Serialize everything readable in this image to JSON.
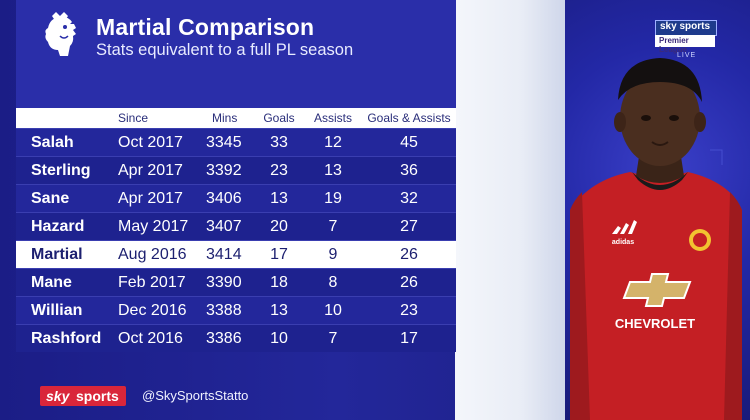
{
  "header": {
    "title": "Martial Comparison",
    "subtitle": "Stats equivalent to a full PL season"
  },
  "table": {
    "columns": [
      "",
      "Since",
      "Mins",
      "Goals",
      "Assists",
      "Goals & Assists"
    ],
    "rows": [
      {
        "name": "Salah",
        "since": "Oct 2017",
        "mins": "3345",
        "goals": "33",
        "assists": "12",
        "ga": "45"
      },
      {
        "name": "Sterling",
        "since": "Apr 2017",
        "mins": "3392",
        "goals": "23",
        "assists": "13",
        "ga": "36"
      },
      {
        "name": "Sane",
        "since": "Apr 2017",
        "mins": "3406",
        "goals": "13",
        "assists": "19",
        "ga": "32"
      },
      {
        "name": "Hazard",
        "since": "May 2017",
        "mins": "3407",
        "goals": "20",
        "assists": "7",
        "ga": "27"
      },
      {
        "name": "Martial",
        "since": "Aug 2016",
        "mins": "3414",
        "goals": "17",
        "assists": "9",
        "ga": "26"
      },
      {
        "name": "Mane",
        "since": "Feb 2017",
        "mins": "3390",
        "goals": "18",
        "assists": "8",
        "ga": "26"
      },
      {
        "name": "Willian",
        "since": "Dec 2016",
        "mins": "3388",
        "goals": "13",
        "assists": "10",
        "ga": "23"
      },
      {
        "name": "Rashford",
        "since": "Oct 2016",
        "mins": "3386",
        "goals": "10",
        "assists": "7",
        "ga": "17"
      }
    ],
    "highlight_row": "Martial"
  },
  "footer": {
    "logo_sky": "sky",
    "logo_sports": "sports",
    "handle": "@SkySportsStatto"
  },
  "badge": {
    "brand": "sky sports",
    "channel": "Premier League",
    "live": "LIVE"
  },
  "player_shirt": {
    "sponsor": "CHEVROLET",
    "kit_brand": "adidas"
  },
  "icons": [
    "premier-league-lion-icon",
    "sky-sports-logo-icon"
  ],
  "colors": {
    "background": "#1d1f86",
    "header": "#2a2ea9",
    "highlight_row": "#ffffff",
    "sky_red": "#d9263a",
    "shirt_red": "#c41f24"
  }
}
